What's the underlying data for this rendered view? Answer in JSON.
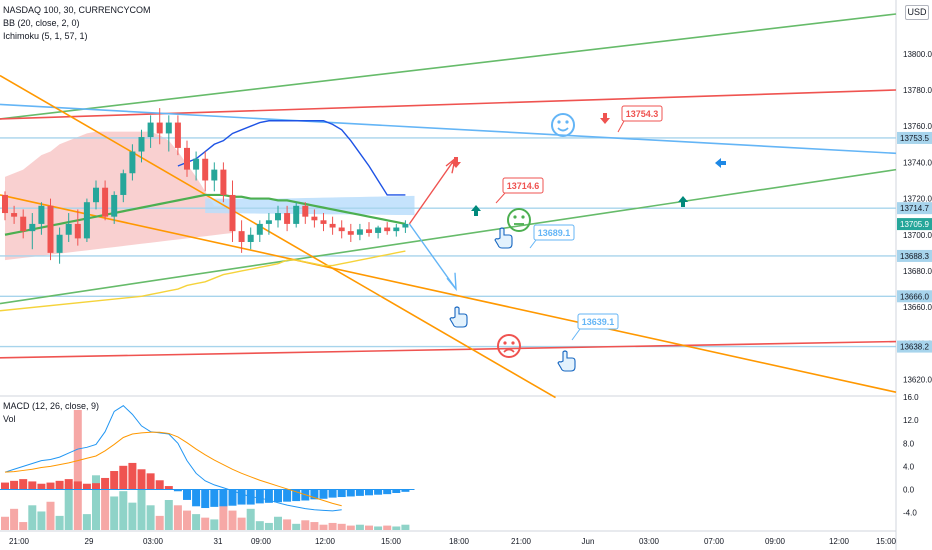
{
  "header": {
    "symbol": "NASDAQ 100, 30, CURRENCYCOM",
    "bb": "BB (20, close, 2, 0)",
    "ichimoku": "Ichimoku (5, 1, 57, 1)",
    "currency": "USD"
  },
  "macd_panel": {
    "title": "MACD (12, 26, close, 9)",
    "vol": "Vol"
  },
  "colors": {
    "up": "#26a69a",
    "down": "#ef5350",
    "bb_mid": "#4caf50",
    "chikou": "#f5d33b",
    "cloud_red": "#f8c8c8",
    "cloud_blue": "#bbdefb",
    "orange": "#ff9800",
    "green_line": "#66bb6a",
    "red_line": "#ef5350",
    "blue_line": "#64b5f6",
    "hline": "#a7d4ec",
    "macd_blue": "#2196f3",
    "signal": "#ff9800"
  },
  "chart_data": [
    {
      "type": "candlestick",
      "title": "NASDAQ 100, 30, CURRENCYCOM",
      "x_tick_labels": [
        "21:00",
        "29",
        "03:00",
        "31",
        "09:00",
        "12:00",
        "15:00",
        "18:00",
        "21:00",
        "Jun",
        "03:00",
        "07:00",
        "09:00",
        "12:00",
        "15:00"
      ],
      "y_tick_labels": [
        "13800.0",
        "13780.0",
        "13760.0",
        "13740.0",
        "13720.0",
        "13700.0",
        "13680.0",
        "13660.0",
        "13640.0",
        "13620.0"
      ],
      "ylim": [
        13612,
        13822
      ],
      "horizontal_levels": [
        13753.5,
        13714.7,
        13688.3,
        13666.0,
        13638.2
      ],
      "price_badges": [
        {
          "label": "13753.5",
          "value": 13753.5,
          "color": "#a7d4ec"
        },
        {
          "label": "13714.7",
          "value": 13714.7,
          "color": "#a7d4ec"
        },
        {
          "label": "13705.9",
          "value": 13705.9,
          "color": "#26a69a"
        },
        {
          "label": "13688.3",
          "value": 13688.3,
          "color": "#a7d4ec"
        },
        {
          "label": "13666.0",
          "value": 13666.0,
          "color": "#a7d4ec"
        },
        {
          "label": "13638.2",
          "value": 13638.2,
          "color": "#a7d4ec"
        }
      ],
      "callouts": [
        {
          "label": "13754.3",
          "value": 13754.3,
          "color": "#ef5350"
        },
        {
          "label": "13714.6",
          "value": 13714.6,
          "color": "#ef5350"
        },
        {
          "label": "13689.1",
          "value": 13689.1,
          "color": "#64b5f6"
        },
        {
          "label": "13639.1",
          "value": 13639.1,
          "color": "#64b5f6"
        }
      ],
      "candles_ohlc": [
        [
          13722,
          13724,
          13708,
          13712
        ],
        [
          13712,
          13716,
          13706,
          13710
        ],
        [
          13710,
          13714,
          13698,
          13702
        ],
        [
          13702,
          13712,
          13692,
          13706
        ],
        [
          13706,
          13718,
          13700,
          13716
        ],
        [
          13716,
          13720,
          13686,
          13690
        ],
        [
          13690,
          13704,
          13684,
          13700
        ],
        [
          13700,
          13712,
          13696,
          13706
        ],
        [
          13706,
          13714,
          13694,
          13698
        ],
        [
          13698,
          13720,
          13696,
          13718
        ],
        [
          13718,
          13730,
          13714,
          13726
        ],
        [
          13726,
          13730,
          13708,
          13710
        ],
        [
          13710,
          13724,
          13706,
          13722
        ],
        [
          13722,
          13736,
          13718,
          13734
        ],
        [
          13734,
          13750,
          13730,
          13746
        ],
        [
          13746,
          13758,
          13740,
          13754
        ],
        [
          13754,
          13766,
          13748,
          13762
        ],
        [
          13762,
          13770,
          13750,
          13756
        ],
        [
          13756,
          13766,
          13746,
          13762
        ],
        [
          13762,
          13766,
          13744,
          13748
        ],
        [
          13748,
          13752,
          13732,
          13736
        ],
        [
          13736,
          13746,
          13730,
          13742
        ],
        [
          13742,
          13746,
          13724,
          13730
        ],
        [
          13730,
          13740,
          13724,
          13736
        ],
        [
          13736,
          13740,
          13718,
          13722
        ],
        [
          13722,
          13730,
          13696,
          13702
        ],
        [
          13702,
          13708,
          13690,
          13696
        ],
        [
          13696,
          13704,
          13692,
          13700
        ],
        [
          13700,
          13708,
          13696,
          13706
        ],
        [
          13706,
          13712,
          13700,
          13708
        ],
        [
          13708,
          13716,
          13704,
          13712
        ],
        [
          13712,
          13716,
          13702,
          13706
        ],
        [
          13706,
          13718,
          13704,
          13716
        ],
        [
          13716,
          13718,
          13706,
          13710
        ],
        [
          13710,
          13714,
          13704,
          13708
        ],
        [
          13708,
          13712,
          13702,
          13706
        ],
        [
          13706,
          13710,
          13700,
          13704
        ],
        [
          13704,
          13708,
          13698,
          13702
        ],
        [
          13702,
          13706,
          13696,
          13700
        ],
        [
          13700,
          13706,
          13697,
          13703
        ],
        [
          13703,
          13707,
          13699,
          13701
        ],
        [
          13701,
          13705,
          13698,
          13704
        ],
        [
          13704,
          13707,
          13700,
          13702
        ],
        [
          13702,
          13706,
          13699,
          13704
        ],
        [
          13704,
          13708,
          13701,
          13706
        ]
      ],
      "bb_basis": [
        13700,
        13701,
        13702,
        13703,
        13704,
        13705,
        13706,
        13707,
        13708,
        13709,
        13710,
        13711,
        13712,
        13713,
        13714,
        13715,
        13716,
        13717,
        13718,
        13719,
        13720,
        13721,
        13722,
        13722,
        13722,
        13721,
        13721,
        13720,
        13720,
        13720,
        13719,
        13719,
        13718,
        13717,
        13716,
        13715,
        13714,
        13713,
        13712,
        13711,
        13710,
        13709,
        13708,
        13707,
        13706
      ],
      "bb_upper": [
        13738,
        13740,
        13742,
        13746,
        13750,
        13752,
        13756,
        13758,
        13760,
        13762,
        13763,
        13763,
        13763,
        13763,
        13763,
        13763,
        13763,
        13761,
        13758,
        13752,
        13745,
        13738,
        13730,
        13722,
        13722,
        13722
      ],
      "chikou": [
        13666,
        13667,
        13668,
        13669,
        13670,
        13672,
        13673,
        13674,
        13676,
        13678,
        13679,
        13680,
        13681,
        13682,
        13683,
        13684,
        13686,
        13686,
        13685,
        13684,
        13683,
        13683,
        13684,
        13685,
        13686,
        13687,
        13688,
        13689,
        13690,
        13691
      ],
      "trendlines": [
        {
          "color": "#66bb6a",
          "from": [
            0,
            13764
          ],
          "to": [
            1,
            13822
          ]
        },
        {
          "color": "#66bb6a",
          "from": [
            0,
            13662
          ],
          "to": [
            1,
            13736
          ]
        },
        {
          "color": "#ef5350",
          "from": [
            0,
            13764
          ],
          "to": [
            1,
            13780
          ]
        },
        {
          "color": "#ef5350",
          "from": [
            0,
            13632
          ],
          "to": [
            1,
            13641
          ]
        },
        {
          "color": "#64b5f6",
          "from": [
            0,
            13772
          ],
          "to": [
            1,
            13745
          ]
        },
        {
          "color": "#ff9800",
          "from": [
            0,
            13788
          ],
          "to": [
            0.62,
            13610
          ]
        },
        {
          "color": "#ff9800",
          "from": [
            0,
            13722
          ],
          "to": [
            1,
            13613
          ]
        }
      ]
    },
    {
      "type": "bar+line",
      "title": "MACD (12, 26, close, 9)",
      "y_tick_labels": [
        "16.0",
        "12.0",
        "8.0",
        "4.0",
        "0.0",
        "-4.0"
      ],
      "ylim": [
        -7,
        16
      ],
      "histogram": [
        1.2,
        1.5,
        1.8,
        1.4,
        1.0,
        1.2,
        1.5,
        1.8,
        1.4,
        1.0,
        1.1,
        2.0,
        3.2,
        4.1,
        4.6,
        3.5,
        2.8,
        1.6,
        0.6,
        -0.3,
        -1.8,
        -2.9,
        -3.2,
        -3.0,
        -2.9,
        -2.8,
        -2.6,
        -2.6,
        -2.4,
        -2.3,
        -2.2,
        -2.1,
        -2.0,
        -1.9,
        -1.7,
        -1.6,
        -1.4,
        -1.3,
        -1.2,
        -1.1,
        -1.0,
        -0.9,
        -0.8,
        -0.6,
        -0.4
      ],
      "macd_line": [
        3,
        3.5,
        4,
        4.5,
        5,
        5.2,
        5.6,
        6.3,
        7,
        7.3,
        7.8,
        10,
        13.5,
        14.5,
        13,
        11,
        10,
        9.8,
        9.6,
        8,
        5,
        2.8,
        1.5,
        0.8,
        0.3,
        -0.2,
        -0.8,
        -1.2,
        -1.5,
        -1.8,
        -2.3,
        -2.7,
        -3,
        -3.3,
        -3.5,
        -3.6,
        -3.7,
        -3.5
      ],
      "signal_line": [
        3,
        3.1,
        3.3,
        3.5,
        3.8,
        4,
        4.3,
        4.6,
        5,
        5.4,
        5.8,
        6.7,
        7.8,
        9,
        9.6,
        9.8,
        9.9,
        9.9,
        9.7,
        9.1,
        8.1,
        7,
        6,
        5.1,
        4.3,
        3.5,
        2.8,
        2.2,
        1.6,
        1.1,
        0.6,
        0.1,
        -0.4,
        -0.9,
        -1.4,
        -1.9,
        -2.4,
        -2.8
      ],
      "volume": [
        1.5,
        2.4,
        0.9,
        2.8,
        2.1,
        3.2,
        1.6,
        5.2,
        13.6,
        1.8,
        6.2,
        4.8,
        3.8,
        4.4,
        3.1,
        5.4,
        2.8,
        1.6,
        3.4,
        2.8,
        2.2,
        1.8,
        1.4,
        1.2,
        3.0,
        2.2,
        1.4,
        2.4,
        1.0,
        0.8,
        1.5,
        1.2,
        0.7,
        1.1,
        0.9,
        0.6,
        0.8,
        0.7,
        0.5,
        0.6,
        0.5,
        0.4,
        0.5,
        0.4,
        0.6
      ]
    }
  ]
}
